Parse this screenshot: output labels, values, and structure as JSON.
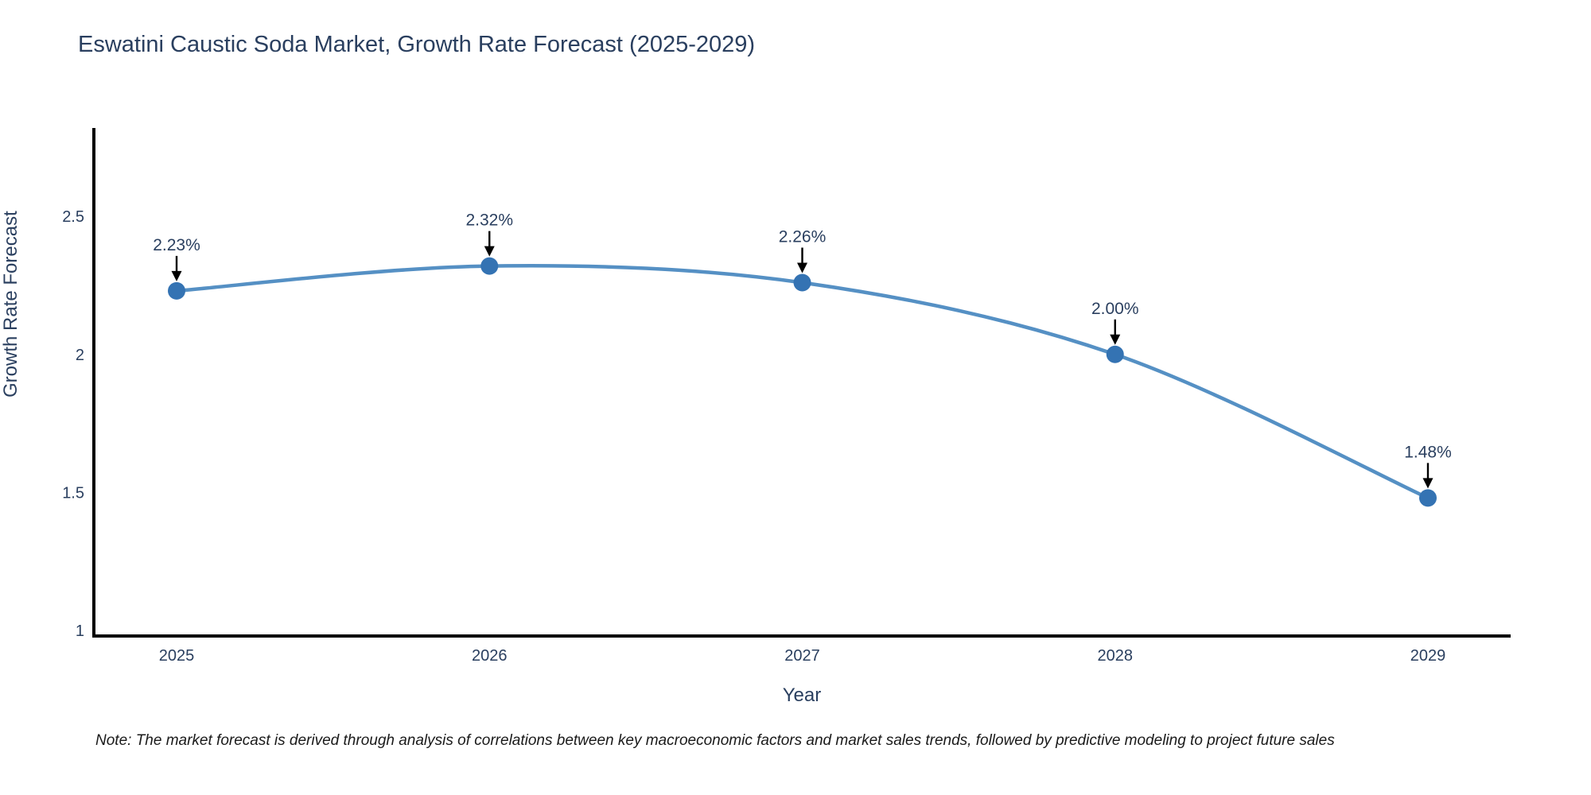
{
  "title": "Eswatini Caustic Soda Market, Growth Rate Forecast (2025-2029)",
  "note": "Note: The market forecast is derived through analysis of correlations between key macroeconomic factors and market sales trends, followed by predictive modeling to project future sales",
  "chart_data": {
    "type": "line",
    "title": "Eswatini Caustic Soda Market, Growth Rate Forecast (2025-2029)",
    "xlabel": "Year",
    "ylabel": "Growth Rate Forecast",
    "categories": [
      "2025",
      "2026",
      "2027",
      "2028",
      "2029"
    ],
    "series": [
      {
        "name": "Growth Rate Forecast",
        "values": [
          2.23,
          2.32,
          2.26,
          2.0,
          1.48
        ],
        "data_labels": [
          "2.23%",
          "2.32%",
          "2.26%",
          "2.00%",
          "1.48%"
        ]
      }
    ],
    "yticks": [
      1,
      1.5,
      2,
      2.5
    ],
    "ytick_labels": [
      "1",
      "1.5",
      "2",
      "2.5"
    ],
    "ylim": [
      0.98,
      2.82
    ],
    "grid": false,
    "legend_position": "none",
    "line_shape": "spline",
    "annotation_arrows": true,
    "colors": {
      "line": "#5590c4",
      "marker": "#3473b3",
      "annotation_arrow": "#000000",
      "text": "#2a3f5f",
      "axis": "#000000",
      "note_text": "#1a1a1a",
      "background": "#ffffff"
    }
  }
}
